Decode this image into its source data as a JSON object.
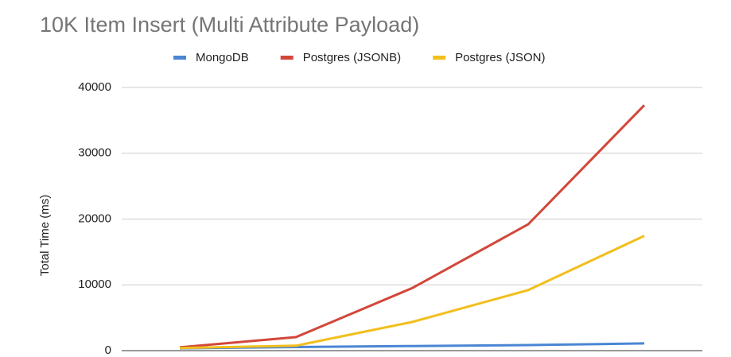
{
  "chart_data": {
    "type": "line",
    "title": "10K Item Insert (Multi Attribute Payload)",
    "y_label": "Total Time (ms)",
    "categories": [
      null,
      null,
      null,
      null,
      null
    ],
    "series": [
      {
        "name": "MongoDB",
        "color": "#4a86d4",
        "values": [
          350,
          550,
          700,
          850,
          1100
        ]
      },
      {
        "name": "Postgres (JSONB)",
        "color": "#d2473a",
        "values": [
          500,
          2050,
          9500,
          19200,
          37300
        ]
      },
      {
        "name": "Postgres (JSON)",
        "color": "#f2bf1e",
        "values": [
          400,
          750,
          4350,
          9200,
          17450
        ]
      }
    ],
    "ylim": [
      0,
      40000
    ],
    "yticks": [
      0,
      10000,
      20000,
      30000,
      40000
    ],
    "grid": true,
    "legend": "top"
  }
}
